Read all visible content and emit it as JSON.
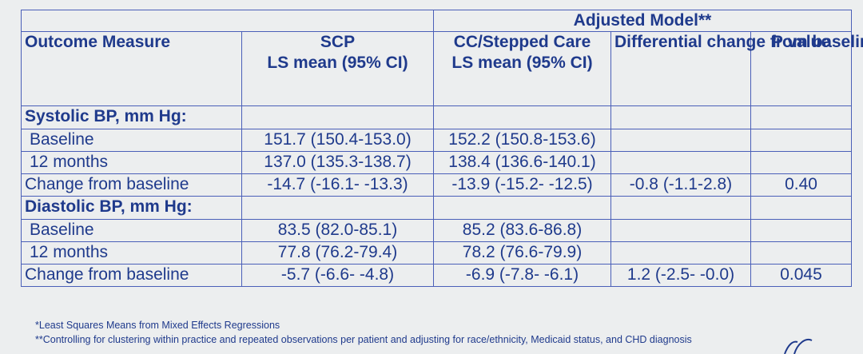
{
  "table": {
    "group_header": "Adjusted Model**",
    "headers": {
      "outcome": "Outcome Measure",
      "scp_line1": "SCP",
      "scp_line2": "LS mean (95% CI)",
      "cc_line1": "CC/Stepped Care",
      "cc_line2": "LS mean (95% CI)",
      "diff": "Differential change from baseline",
      "p": "P value"
    },
    "sections": [
      {
        "title": "Systolic BP, mm Hg:",
        "rows": [
          {
            "label": "Baseline",
            "scp": "151.7 (150.4-153.0)",
            "cc": "152.2 (150.8-153.6)",
            "diff": "",
            "p": ""
          },
          {
            "label": "12 months",
            "scp": "137.0 (135.3-138.7)",
            "cc": "138.4 (136.6-140.1)",
            "diff": "",
            "p": ""
          },
          {
            "label": "Change from baseline",
            "scp": "-14.7 (-16.1- -13.3)",
            "cc": "-13.9 (-15.2- -12.5)",
            "diff": "-0.8 (-1.1-2.8)",
            "p": "0.40"
          }
        ]
      },
      {
        "title": "Diastolic BP, mm Hg:",
        "rows": [
          {
            "label": "Baseline",
            "scp": "83.5 (82.0-85.1)",
            "cc": "85.2 (83.6-86.8)",
            "diff": "",
            "p": ""
          },
          {
            "label": "12 months",
            "scp": "77.8 (76.2-79.4)",
            "cc": "78.2 (76.6-79.9)",
            "diff": "",
            "p": ""
          },
          {
            "label": "Change from baseline",
            "scp": "-5.7 (-6.6- -4.8)",
            "cc": "-6.9 (-7.8- -6.1)",
            "diff": "1.2 (-2.5- -0.0)",
            "p": "0.045"
          }
        ]
      }
    ]
  },
  "footnotes": [
    "*Least Squares Means from Mixed Effects Regressions",
    "**Controlling for clustering within practice and repeated observations per patient and adjusting for race/ethnicity, Medicaid status, and CHD diagnosis"
  ],
  "colors": {
    "text": "#1f3a8c",
    "border": "#4a5fb8",
    "background": "#eceeef"
  }
}
